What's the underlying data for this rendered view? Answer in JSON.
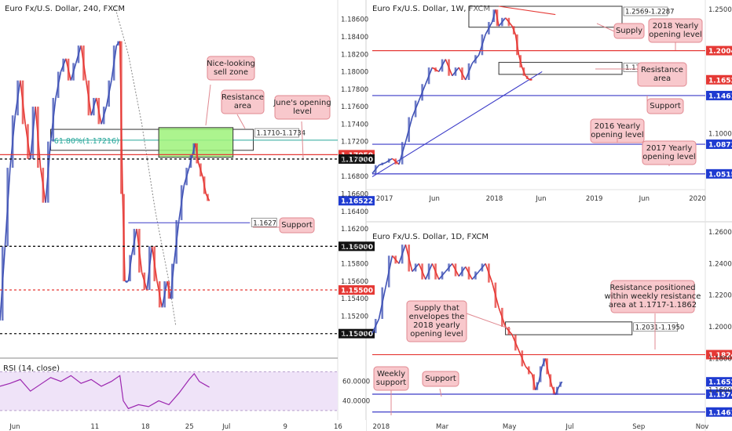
{
  "colors": {
    "up": "#3f51b5",
    "down": "#e53935",
    "blue_line": "#3b3bc8",
    "red_level": "#e53935",
    "callout_fill": "#f8c8cc",
    "callout_stroke": "#e08890",
    "zone_green": "#9ef27a",
    "rsi_fill": "#efe3f8",
    "rsi_line": "#9c27b0",
    "fib_teal": "#26a69a",
    "black_tag": "#111111",
    "blue_tag": "#1f3bd1",
    "red_tag": "#e53935"
  },
  "chart_data": [
    {
      "id": "h4",
      "type": "line",
      "title": "Euro Fx/U.S. Dollar, 240, FXCM",
      "price_ticks": [
        "1.18600",
        "1.18400",
        "1.18200",
        "1.18000",
        "1.17800",
        "1.17600",
        "1.17400",
        "1.17200",
        "1.17000",
        "1.16800",
        "1.16600",
        "1.16400",
        "1.16200",
        "1.16000",
        "1.15800",
        "1.15600",
        "1.15400",
        "1.15200",
        "1.15000"
      ],
      "x_ticks": [
        "Jun",
        "11",
        "18",
        "25",
        "Jul",
        "9",
        "16"
      ],
      "ylim": [
        1.148,
        1.1875
      ],
      "x_range": [
        0,
        100
      ],
      "x_tick_positions": [
        4,
        28,
        43,
        56,
        67,
        85,
        100
      ],
      "price_path": [
        [
          0,
          1.1515
        ],
        [
          1.5,
          1.16
        ],
        [
          3,
          1.169
        ],
        [
          4.5,
          1.175
        ],
        [
          6,
          1.179
        ],
        [
          7.5,
          1.174
        ],
        [
          9,
          1.17
        ],
        [
          10.5,
          1.176
        ],
        [
          12,
          1.169
        ],
        [
          13.5,
          1.165
        ],
        [
          15,
          1.172
        ],
        [
          16.5,
          1.177
        ],
        [
          18,
          1.18
        ],
        [
          19.5,
          1.1815
        ],
        [
          21,
          1.179
        ],
        [
          22.5,
          1.181
        ],
        [
          24,
          1.183
        ],
        [
          25.5,
          1.179
        ],
        [
          27,
          1.175
        ],
        [
          28.5,
          1.177
        ],
        [
          30,
          1.174
        ],
        [
          31.5,
          1.176
        ],
        [
          33,
          1.179
        ],
        [
          34.5,
          1.183
        ],
        [
          35.5,
          1.1835
        ],
        [
          36.3,
          1.166
        ],
        [
          37,
          1.156
        ],
        [
          38,
          1.156
        ],
        [
          39,
          1.159
        ],
        [
          40.5,
          1.162
        ],
        [
          42,
          1.157
        ],
        [
          43.5,
          1.155
        ],
        [
          45,
          1.16
        ],
        [
          46.5,
          1.156
        ],
        [
          48,
          1.153
        ],
        [
          49.5,
          1.156
        ],
        [
          50.5,
          1.154
        ],
        [
          51.5,
          1.158
        ],
        [
          53,
          1.163
        ],
        [
          54.5,
          1.167
        ],
        [
          56,
          1.169
        ],
        [
          57,
          1.1705
        ],
        [
          57.8,
          1.1718
        ],
        [
          58.8,
          1.1695
        ],
        [
          60,
          1.168
        ],
        [
          61,
          1.166
        ],
        [
          62,
          1.1652
        ]
      ],
      "overlay_line": {
        "name": "",
        "points": [
          [
            34,
            1.1875
          ],
          [
            38,
            1.182
          ],
          [
            42,
            1.174
          ],
          [
            46,
            1.164
          ],
          [
            50,
            1.156
          ],
          [
            52,
            1.151
          ]
        ]
      },
      "levels": [
        {
          "value": 1.1705,
          "label": "1.17050",
          "style": "red-solid"
        },
        {
          "value": 1.17,
          "label": "1.17000",
          "style": "black-dotted"
        },
        {
          "value": 1.16,
          "label": "1.16000",
          "style": "black-dotted"
        },
        {
          "value": 1.155,
          "label": "1.15500",
          "style": "red-dotted"
        },
        {
          "value": 1.15,
          "label": "1.15000",
          "style": "black-dotted"
        }
      ],
      "current_price": "1.16522",
      "support_line": {
        "value": 1.1627,
        "from": 38,
        "to": 74
      },
      "fib": {
        "value": 1.17216,
        "label": "61.80%(1.17216)"
      },
      "resistance_box": {
        "from_x": 15,
        "to_x": 75,
        "top": 1.1734,
        "bottom": 1.171,
        "label": "1.1710-1.1734"
      },
      "sell_zone": {
        "from_x": 47,
        "to_x": 69,
        "top": 1.1736,
        "bottom": 1.1702
      },
      "support_label": "1.1627",
      "callouts": [
        "Nice-looking\nsell zone",
        "Resistance\narea",
        "June's opening\nlevel",
        "Support"
      ],
      "rsi": {
        "title": "RSI (14, close)",
        "ticks": [
          "60.0000",
          "40.0000"
        ],
        "ylim": [
          25,
          80
        ],
        "path": [
          [
            0,
            55
          ],
          [
            3,
            58
          ],
          [
            6,
            62
          ],
          [
            9,
            50
          ],
          [
            12,
            57
          ],
          [
            15,
            64
          ],
          [
            18,
            60
          ],
          [
            21,
            66
          ],
          [
            24,
            58
          ],
          [
            27,
            62
          ],
          [
            30,
            55
          ],
          [
            33,
            60
          ],
          [
            35.5,
            66
          ],
          [
            36.5,
            40
          ],
          [
            38,
            32
          ],
          [
            41,
            36
          ],
          [
            44,
            34
          ],
          [
            47,
            40
          ],
          [
            50,
            36
          ],
          [
            53,
            48
          ],
          [
            56,
            62
          ],
          [
            57.5,
            68
          ],
          [
            59,
            60
          ],
          [
            61,
            56
          ],
          [
            62,
            54
          ]
        ]
      }
    },
    {
      "id": "weekly",
      "type": "line",
      "title": "Euro Fx/U.S. Dollar, 1W, FXCM",
      "price_ticks": [
        "1.25000",
        "1.10000"
      ],
      "x_ticks": [
        "2017",
        "Jun",
        "2018",
        "Jun",
        "2019",
        "Jun",
        "2020"
      ],
      "ylim": [
        1.04,
        1.254
      ],
      "x_range": [
        0,
        100
      ],
      "x_tick_positions": [
        3,
        19,
        36,
        51,
        66,
        82,
        97
      ],
      "price_path": [
        [
          0,
          1.052
        ],
        [
          2,
          1.062
        ],
        [
          4,
          1.065
        ],
        [
          6,
          1.07
        ],
        [
          8,
          1.063
        ],
        [
          10,
          1.09
        ],
        [
          12,
          1.12
        ],
        [
          14,
          1.14
        ],
        [
          16,
          1.16
        ],
        [
          18,
          1.18
        ],
        [
          20,
          1.175
        ],
        [
          22,
          1.19
        ],
        [
          24,
          1.17
        ],
        [
          26,
          1.18
        ],
        [
          28,
          1.165
        ],
        [
          30,
          1.185
        ],
        [
          32,
          1.195
        ],
        [
          34,
          1.22
        ],
        [
          36,
          1.235
        ],
        [
          37,
          1.25
        ],
        [
          38,
          1.23
        ],
        [
          40,
          1.24
        ],
        [
          42,
          1.23
        ],
        [
          43,
          1.22
        ],
        [
          44,
          1.195
        ],
        [
          45,
          1.18
        ],
        [
          46,
          1.17
        ],
        [
          47,
          1.166
        ],
        [
          48,
          1.1652
        ]
      ],
      "trend_line": {
        "points": [
          [
            0,
            1.048
          ],
          [
            51,
            1.175
          ]
        ]
      },
      "extra_trend_line": {
        "points": [
          [
            38,
            1.254
          ],
          [
            55,
            1.244
          ]
        ]
      },
      "levels": [
        {
          "value": 1.2004,
          "label": "1.20040",
          "style": "red-solid"
        },
        {
          "value": 1.16522,
          "label": "1.16522",
          "style": "price"
        },
        {
          "value": 1.1461,
          "label": "1.14610",
          "style": "blue-solid"
        },
        {
          "value": 1.0873,
          "label": "1.08730",
          "style": "blue-solid"
        },
        {
          "value": 1.0515,
          "label": "1.05150",
          "style": "blue-solid"
        }
      ],
      "zones": [
        {
          "label": "1.2569-1.2287",
          "from_x": 29,
          "to_x": 75,
          "top": 1.254,
          "bottom": 1.2287
        },
        {
          "label": "1.1717-1.1862",
          "from_x": 38,
          "to_x": 75,
          "top": 1.1862,
          "bottom": 1.1717
        }
      ],
      "callouts": [
        "Supply",
        "2018 Yearly\nopening level",
        "Resistance\narea",
        "Support",
        "2016 Yearly\nopening level",
        "2017 Yearly\nopening level"
      ]
    },
    {
      "id": "daily",
      "type": "line",
      "title": "Euro Fx/U.S. Dollar, 1D, FXCM",
      "price_ticks": [
        "1.26000",
        "1.24000",
        "1.22000",
        "1.20000",
        "1.18000",
        "1.16000"
      ],
      "x_ticks": [
        "2018",
        "Mar",
        "May",
        "Jul",
        "Sep",
        "Nov"
      ],
      "ylim": [
        1.144,
        1.262
      ],
      "x_range": [
        0,
        100
      ],
      "x_tick_positions": [
        2,
        21,
        41,
        60,
        80,
        99
      ],
      "price_path": [
        [
          0,
          1.196
        ],
        [
          2,
          1.205
        ],
        [
          4,
          1.225
        ],
        [
          6,
          1.245
        ],
        [
          8,
          1.24
        ],
        [
          10,
          1.252
        ],
        [
          12,
          1.235
        ],
        [
          14,
          1.24
        ],
        [
          16,
          1.23
        ],
        [
          18,
          1.24
        ],
        [
          20,
          1.23
        ],
        [
          22,
          1.235
        ],
        [
          24,
          1.24
        ],
        [
          26,
          1.232
        ],
        [
          28,
          1.238
        ],
        [
          30,
          1.23
        ],
        [
          32,
          1.235
        ],
        [
          34,
          1.24
        ],
        [
          36,
          1.228
        ],
        [
          38,
          1.212
        ],
        [
          40,
          1.2
        ],
        [
          42,
          1.195
        ],
        [
          44,
          1.185
        ],
        [
          46,
          1.175
        ],
        [
          48,
          1.17
        ],
        [
          49,
          1.16
        ],
        [
          50,
          1.165
        ],
        [
          51,
          1.175
        ],
        [
          52,
          1.18
        ],
        [
          53,
          1.17
        ],
        [
          54,
          1.162
        ],
        [
          55,
          1.157
        ],
        [
          56,
          1.162
        ],
        [
          57,
          1.1652
        ]
      ],
      "levels": [
        {
          "value": 1.1824,
          "label": "1.18240",
          "style": "red-solid"
        },
        {
          "value": 1.16522,
          "label": "1.16522",
          "style": "price"
        },
        {
          "value": 1.1574,
          "label": "1.15740",
          "style": "blue-solid"
        },
        {
          "value": 1.1461,
          "label": "1.14610",
          "style": "blue-solid"
        }
      ],
      "zones": [
        {
          "label": "1.2031-1.1950",
          "from_x": 40,
          "to_x": 78,
          "top": 1.2031,
          "bottom": 1.195
        }
      ],
      "callouts": [
        "Resistance positioned\nwithin weekly resistance\narea at 1.1717-1.1862",
        "Supply that\nenvelopes the\n2018 yearly\nopening level",
        "Weekly\nsupport",
        "Support"
      ]
    }
  ]
}
